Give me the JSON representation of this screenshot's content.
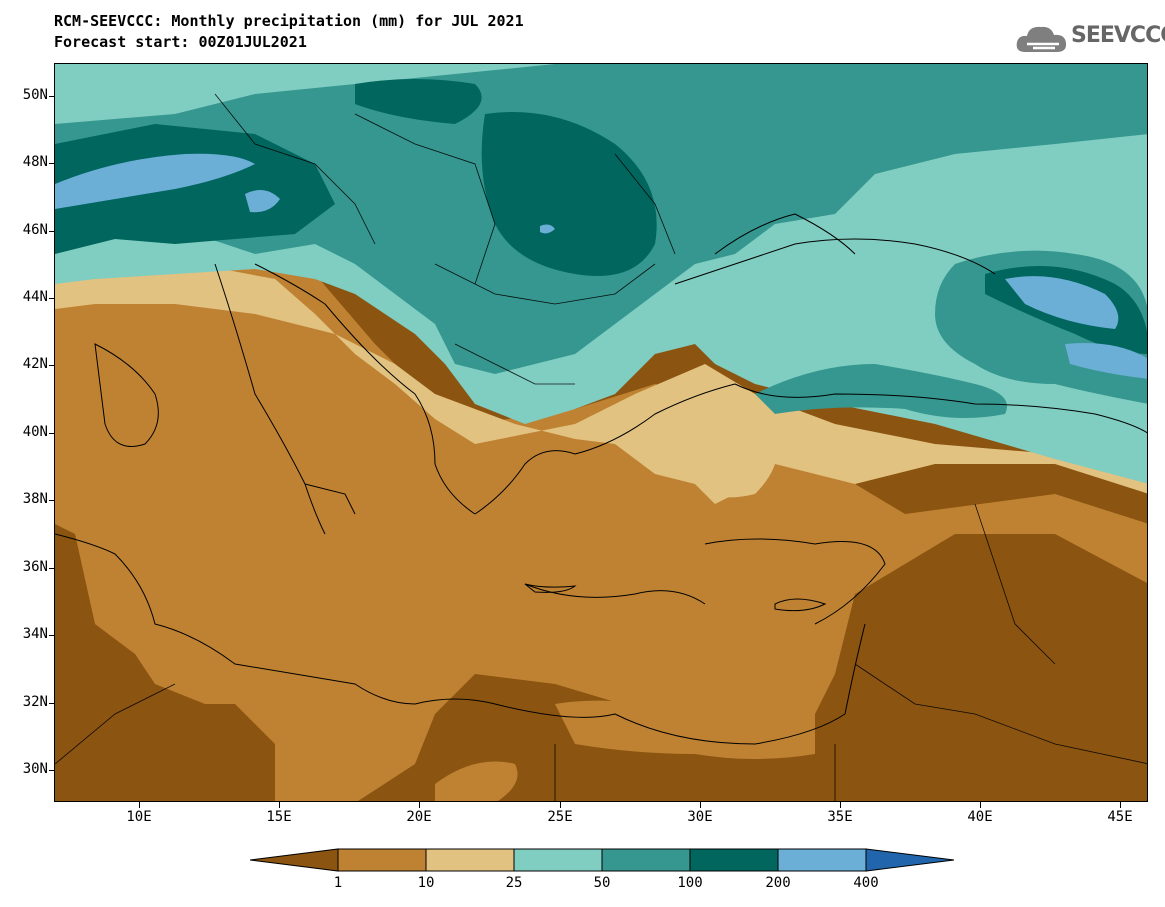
{
  "header": {
    "title": "RCM-SEEVCCC: Monthly precipitation (mm) for JUL 2021",
    "subtitle": "Forecast start: 00Z01JUL2021"
  },
  "logo": {
    "text": "SEEVCCC",
    "icon": "cloud-icon"
  },
  "map": {
    "lon_range": [
      7,
      46
    ],
    "lat_range": [
      29,
      51
    ],
    "lat_ticks": [
      "50N",
      "48N",
      "46N",
      "44N",
      "42N",
      "40N",
      "38N",
      "36N",
      "34N",
      "32N",
      "30N"
    ],
    "lon_ticks": [
      "10E",
      "15E",
      "20E",
      "25E",
      "30E",
      "35E",
      "40E",
      "45E"
    ]
  },
  "colorbar": {
    "labels": [
      "1",
      "10",
      "25",
      "50",
      "100",
      "200",
      "400"
    ],
    "colors": [
      "#8b5410",
      "#bf8232",
      "#e1c281",
      "#80cdc1",
      "#35978f",
      "#01665e",
      "#6baed6",
      "#2166ac"
    ]
  }
}
